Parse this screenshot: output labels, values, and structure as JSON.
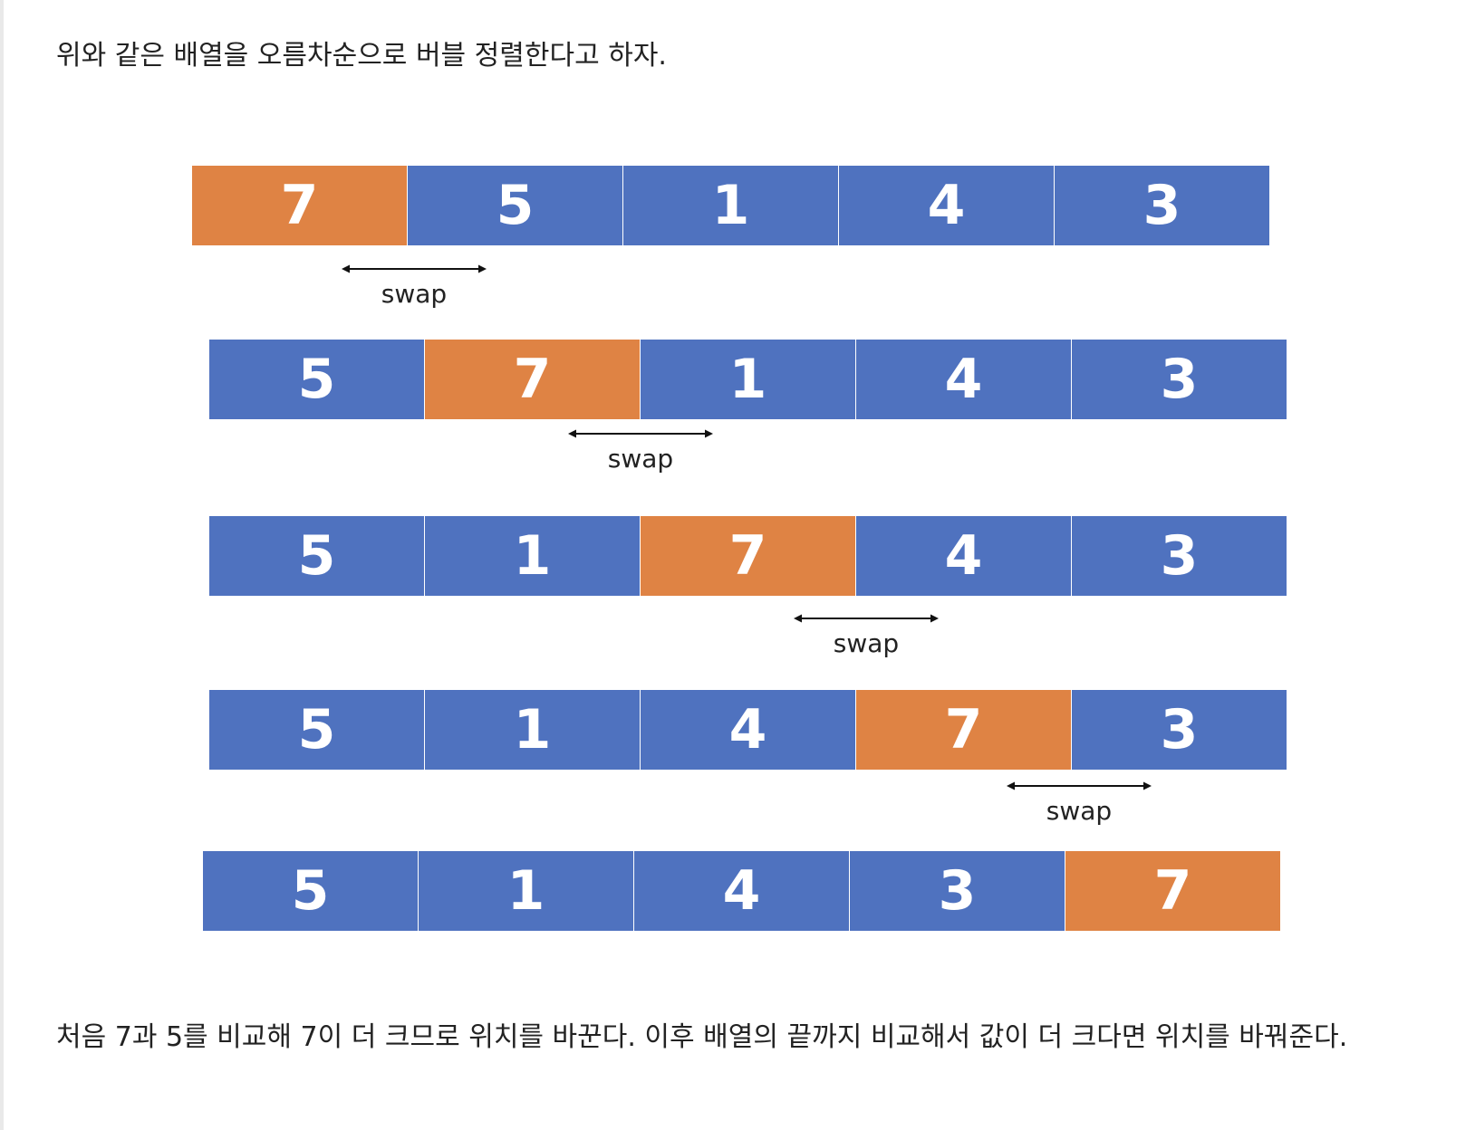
{
  "intro_text": "위와 같은 배열을 오름차순으로 버블 정렬한다고 하자.",
  "outro_text": "처음 7과 5를 비교해 7이 더 크므로 위치를 바꾼다. 이후 배열의 끝까지 비교해서 값이 더 크다면 위치를 바꿔준다.",
  "colors": {
    "cell_default": "#4f72bf",
    "cell_highlight": "#df8344",
    "cell_text": "#ffffff"
  },
  "arrays": [
    {
      "values": [
        "7",
        "5",
        "1",
        "4",
        "3"
      ],
      "highlight_index": 0
    },
    {
      "values": [
        "5",
        "7",
        "1",
        "4",
        "3"
      ],
      "highlight_index": 1
    },
    {
      "values": [
        "5",
        "1",
        "7",
        "4",
        "3"
      ],
      "highlight_index": 2
    },
    {
      "values": [
        "5",
        "1",
        "4",
        "7",
        "3"
      ],
      "highlight_index": 3
    },
    {
      "values": [
        "5",
        "1",
        "4",
        "3",
        "7"
      ],
      "highlight_index": 4
    }
  ],
  "swap_label": "swap"
}
